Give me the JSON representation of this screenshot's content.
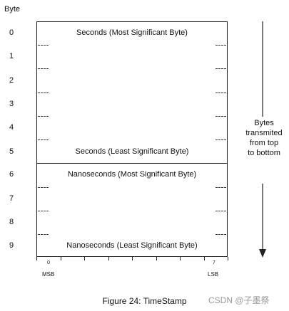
{
  "header": {
    "byte_label": "Byte"
  },
  "rows": [
    "0",
    "1",
    "2",
    "3",
    "4",
    "5",
    "6",
    "7",
    "8",
    "9"
  ],
  "fields": {
    "seconds_msb": "Seconds (Most Significant Byte)",
    "seconds_lsb": "Seconds (Least Significant Byte)",
    "nanoseconds_msb": "Nanoseconds (Most Significant Byte)",
    "nanoseconds_lsb": "Nanoseconds (Least Significant Byte)"
  },
  "bit_axis": {
    "first_bit": "0",
    "last_bit": "7",
    "left_label": "MSB",
    "right_label": "LSB"
  },
  "transmission_note": [
    "Bytes",
    "transmited",
    "from top",
    "to bottom"
  ],
  "caption": "Figure 24: TimeStamp",
  "watermark": "CSDN @子墨祭"
}
